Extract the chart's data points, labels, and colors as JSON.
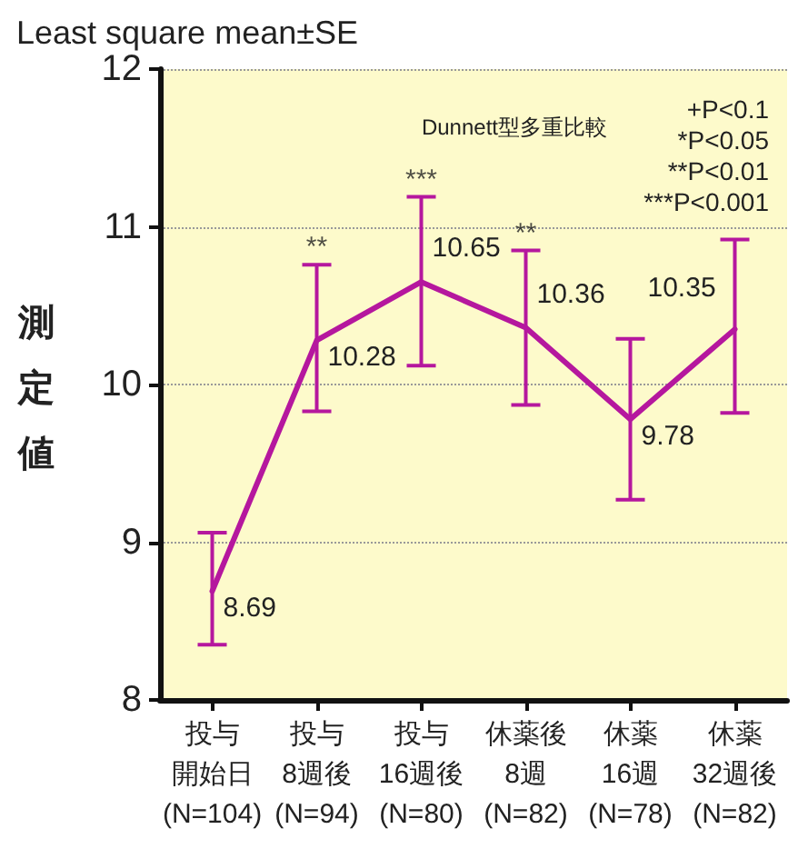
{
  "chart_data": {
    "type": "line",
    "title": "Least square mean±SE",
    "ylabel": "測定値",
    "categories": [
      "投与開始日(N=104)",
      "投与8週後(N=94)",
      "投与16週後(N=80)",
      "休薬後8週(N=82)",
      "休薬16週(N=78)",
      "休薬32週後(N=82)"
    ],
    "series": [
      {
        "color": "#b5179e",
        "values": [
          8.69,
          10.28,
          10.65,
          10.36,
          9.78,
          10.35
        ],
        "errors": [
          [
            8.35,
            9.06
          ],
          [
            9.83,
            10.76
          ],
          [
            10.12,
            11.19
          ],
          [
            9.87,
            10.85
          ],
          [
            9.27,
            10.29
          ],
          [
            9.82,
            10.92
          ]
        ]
      }
    ],
    "ylim": [
      8,
      12
    ],
    "yticks": [
      8,
      9,
      10,
      11,
      12
    ],
    "grid": "y",
    "marker": "none",
    "line_style": "solid",
    "data_labels": true,
    "annotations": [
      {
        "text": "**",
        "x": "投与8週後(N=94)",
        "y": 10.76
      },
      {
        "text": "***",
        "x": "投与16週後(N=80)",
        "y": 11.19
      },
      {
        "text": "**",
        "x": "休薬後8週(N=82)",
        "y": 10.85
      },
      "Dunnett型多重比較",
      "+P<0.1",
      "*P<0.05",
      "**P<0.01",
      "***P<0.001"
    ]
  }
}
